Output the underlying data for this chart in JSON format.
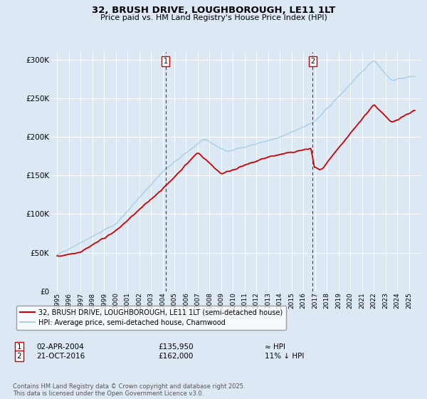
{
  "title_line1": "32, BRUSH DRIVE, LOUGHBOROUGH, LE11 1LT",
  "title_line2": "Price paid vs. HM Land Registry's House Price Index (HPI)",
  "background_color": "#dce9f5",
  "plot_bg_color": "#dce9f5",
  "legend_line1": "32, BRUSH DRIVE, LOUGHBOROUGH, LE11 1LT (semi-detached house)",
  "legend_line2": "HPI: Average price, semi-detached house, Charnwood",
  "red_color": "#cc0000",
  "blue_color": "#a8d0e8",
  "marker1_date": "02-APR-2004",
  "marker1_price": "£135,950",
  "marker1_hpi": "≈ HPI",
  "marker2_date": "21-OCT-2016",
  "marker2_price": "£162,000",
  "marker2_hpi": "11% ↓ HPI",
  "footer": "Contains HM Land Registry data © Crown copyright and database right 2025.\nThis data is licensed under the Open Government Licence v3.0.",
  "ylim_min": 0,
  "ylim_max": 310000,
  "yticks": [
    0,
    50000,
    100000,
    150000,
    200000,
    250000,
    300000
  ],
  "ytick_labels": [
    "£0",
    "£50K",
    "£100K",
    "£150K",
    "£200K",
    "£250K",
    "£300K"
  ],
  "marker1_x": 2004.25,
  "marker2_x": 2016.8,
  "xmin": 1994.5,
  "xmax": 2026.0
}
